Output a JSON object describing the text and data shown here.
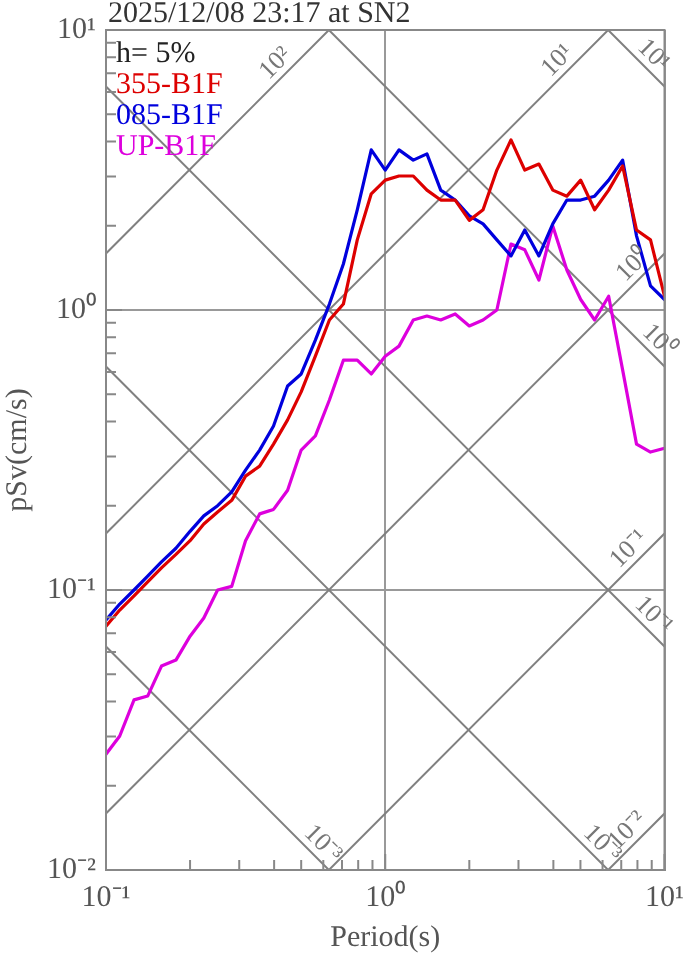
{
  "chart_data": {
    "type": "line",
    "title": "2025/12/08 23:17 at SN2",
    "xlabel": "Period(s)",
    "ylabel": "pSv(cm/s)",
    "log": "xy",
    "grid": true,
    "legend": "top left",
    "xlim": [
      0.1,
      10
    ],
    "ylim": [
      0.01,
      10
    ],
    "xticks": [
      {
        "value": 0.1,
        "label": "10⁻¹"
      },
      {
        "value": 0.2,
        "label": null
      },
      {
        "value": 0.3,
        "label": null
      },
      {
        "value": 0.4,
        "label": null
      },
      {
        "value": 0.5,
        "label": null
      },
      {
        "value": 0.6,
        "label": null
      },
      {
        "value": 0.7,
        "label": null
      },
      {
        "value": 0.8,
        "label": null
      },
      {
        "value": 0.9,
        "label": null
      },
      {
        "value": 1,
        "label": "10⁰"
      },
      {
        "value": 2,
        "label": null
      },
      {
        "value": 3,
        "label": null
      },
      {
        "value": 4,
        "label": null
      },
      {
        "value": 5,
        "label": null
      },
      {
        "value": 6,
        "label": null
      },
      {
        "value": 7,
        "label": null
      },
      {
        "value": 8,
        "label": null
      },
      {
        "value": 9,
        "label": null
      },
      {
        "value": 10,
        "label": "10¹"
      }
    ],
    "yticks": [
      {
        "value": 0.01,
        "label": "10⁻²"
      },
      {
        "value": 0.02,
        "label": null
      },
      {
        "value": 0.03,
        "label": null
      },
      {
        "value": 0.04,
        "label": null
      },
      {
        "value": 0.05,
        "label": null
      },
      {
        "value": 0.06,
        "label": null
      },
      {
        "value": 0.07,
        "label": null
      },
      {
        "value": 0.08,
        "label": null
      },
      {
        "value": 0.09,
        "label": null
      },
      {
        "value": 0.1,
        "label": "10⁻¹"
      },
      {
        "value": 0.2,
        "label": null
      },
      {
        "value": 0.3,
        "label": null
      },
      {
        "value": 0.4,
        "label": null
      },
      {
        "value": 0.5,
        "label": null
      },
      {
        "value": 0.6,
        "label": null
      },
      {
        "value": 0.7,
        "label": null
      },
      {
        "value": 0.8,
        "label": null
      },
      {
        "value": 0.9,
        "label": null
      },
      {
        "value": 1,
        "label": "10⁰"
      },
      {
        "value": 2,
        "label": null
      },
      {
        "value": 3,
        "label": null
      },
      {
        "value": 4,
        "label": null
      },
      {
        "value": 5,
        "label": null
      },
      {
        "value": 6,
        "label": null
      },
      {
        "value": 7,
        "label": null
      },
      {
        "value": 8,
        "label": null
      },
      {
        "value": 9,
        "label": null
      },
      {
        "value": 10,
        "label": "10¹"
      }
    ],
    "x": [
      0.1,
      0.112,
      0.126,
      0.141,
      0.158,
      0.178,
      0.2,
      0.224,
      0.251,
      0.282,
      0.316,
      0.355,
      0.398,
      0.447,
      0.5,
      0.562,
      0.631,
      0.708,
      0.794,
      0.891,
      1,
      1.12,
      1.26,
      1.41,
      1.58,
      1.78,
      2,
      2.24,
      2.51,
      2.82,
      3.16,
      3.55,
      3.98,
      4.47,
      5.01,
      5.62,
      6.31,
      7.08,
      7.94,
      8.91,
      10
    ],
    "annotations": [
      "h= 5%",
      {
        "text": "10²",
        "x": 0.44,
        "y": 7.0
      },
      {
        "text": "10¹",
        "x": 4.5,
        "y": 7.16
      },
      {
        "text": "10¹",
        "x": 8.4,
        "y": 7.48
      },
      {
        "text": "10⁰",
        "x": 8.4,
        "y": 1.337
      },
      {
        "text": "10⁰",
        "x": 8.8,
        "y": 0.714
      },
      {
        "text": "10⁻¹",
        "x": 8.1,
        "y": 0.1289
      },
      {
        "text": "10⁻¹",
        "x": 8.4,
        "y": 0.0748
      },
      {
        "text": "10⁻³",
        "x": 0.55,
        "y": 0.01142
      },
      {
        "text": "10⁻³",
        "x": 5.5,
        "y": 0.01142
      },
      {
        "text": "10⁻²",
        "x": 8.0,
        "y": 0.01273
      }
    ],
    "series": [
      {
        "name": "355-B1F",
        "color": "#dd0000",
        "values": [
          0.0743,
          0.0848,
          0.0952,
          0.107,
          0.12,
          0.134,
          0.15,
          0.172,
          0.19,
          0.209,
          0.255,
          0.277,
          0.332,
          0.405,
          0.51,
          0.684,
          0.921,
          1.05,
          1.78,
          2.6,
          2.91,
          3.01,
          3.01,
          2.68,
          2.47,
          2.47,
          2.09,
          2.28,
          3.16,
          4.05,
          3.16,
          3.32,
          2.68,
          2.55,
          2.91,
          2.28,
          2.68,
          3.27,
          1.93,
          1.78,
          1.12
        ]
      },
      {
        "name": "085-B1F",
        "color": "#0000dd",
        "values": [
          0.0781,
          0.0891,
          0.1,
          0.112,
          0.126,
          0.141,
          0.162,
          0.184,
          0.2,
          0.224,
          0.268,
          0.316,
          0.385,
          0.535,
          0.591,
          0.781,
          1.05,
          1.46,
          2.28,
          3.73,
          3.16,
          3.73,
          3.43,
          3.61,
          2.68,
          2.47,
          2.17,
          2.03,
          1.78,
          1.56,
          1.93,
          1.56,
          2.03,
          2.47,
          2.47,
          2.55,
          2.91,
          3.43,
          1.84,
          1.22,
          1.09
        ]
      },
      {
        "name": "UP-B1F",
        "color": "#dd00dd",
        "values": [
          0.0259,
          0.0301,
          0.0405,
          0.0418,
          0.0535,
          0.0562,
          0.0684,
          0.0794,
          0.1,
          0.103,
          0.15,
          0.187,
          0.194,
          0.227,
          0.316,
          0.355,
          0.477,
          0.662,
          0.662,
          0.591,
          0.684,
          0.743,
          0.921,
          0.952,
          0.921,
          0.968,
          0.877,
          0.921,
          1,
          1.72,
          1.64,
          1.28,
          1.995,
          1.39,
          1.09,
          0.921,
          1.12,
          0.611,
          0.332,
          0.311,
          0.321
        ]
      },
      {
        "type": "line",
        "color": "#808080",
        "x": [
          0.1,
          0.6283
        ],
        "values": [
          1.5915,
          10
        ]
      },
      {
        "type": "line",
        "color": "#808080",
        "x": [
          0.1,
          6.283
        ],
        "values": [
          0.15915,
          10
        ]
      },
      {
        "type": "line",
        "color": "#808080",
        "x": [
          0.1,
          10
        ],
        "values": [
          0.015915,
          1.5915
        ]
      },
      {
        "type": "line",
        "color": "#808080",
        "x": [
          0.6283,
          10
        ],
        "values": [
          0.01,
          0.15915
        ]
      },
      {
        "type": "line",
        "color": "#808080",
        "x": [
          6.283,
          10
        ],
        "values": [
          0.01,
          0.015915
        ]
      },
      {
        "type": "line",
        "color": "#808080",
        "x": [
          6.283,
          10
        ],
        "values": [
          10,
          6.283
        ]
      },
      {
        "type": "line",
        "color": "#808080",
        "x": [
          0.6283,
          10
        ],
        "values": [
          10,
          0.6283
        ]
      },
      {
        "type": "line",
        "color": "#808080",
        "x": [
          0.1,
          10
        ],
        "values": [
          6.283,
          0.06283
        ]
      },
      {
        "type": "line",
        "color": "#808080",
        "x": [
          0.1,
          6.283
        ],
        "values": [
          0.6283,
          0.01
        ]
      },
      {
        "type": "line",
        "color": "#808080",
        "x": [
          0.1,
          0.6283
        ],
        "values": [
          0.06283,
          0.01
        ]
      }
    ]
  }
}
